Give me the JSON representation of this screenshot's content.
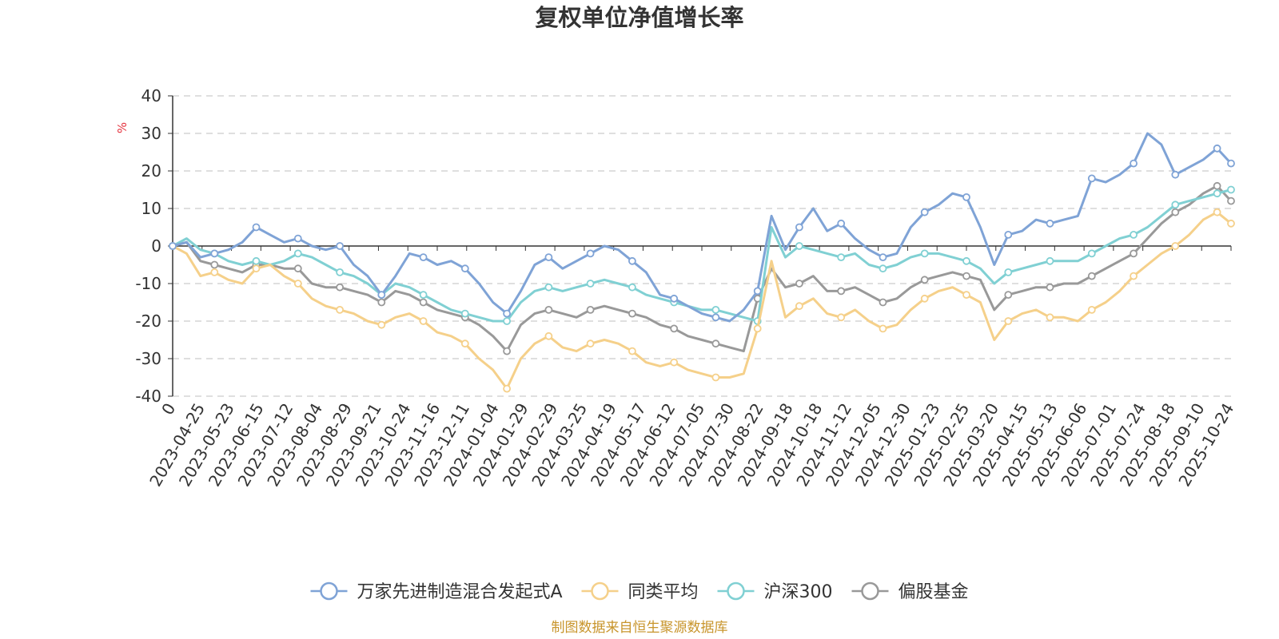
{
  "chart_data": {
    "type": "line",
    "title": "复权单位净值增长率",
    "unit_label": "%",
    "ylim": [
      -40,
      40
    ],
    "y_ticks": [
      "40",
      "30",
      "20",
      "10",
      "0",
      "-10",
      "-20",
      "-30",
      "-40"
    ],
    "x_ticks": [
      "0",
      "2023-04-25",
      "2023-05-23",
      "2023-06-15",
      "2023-07-12",
      "2023-08-04",
      "2023-08-29",
      "2023-09-21",
      "2023-10-24",
      "2023-11-16",
      "2023-12-11",
      "2024-01-04",
      "2024-01-29",
      "2024-02-29",
      "2024-03-25",
      "2024-04-19",
      "2024-05-17",
      "2024-06-12",
      "2024-07-05",
      "2024-07-30",
      "2024-08-22",
      "2024-09-18",
      "2024-10-18",
      "2024-11-12",
      "2024-12-05",
      "2024-12-30",
      "2025-01-23",
      "2025-02-25",
      "2025-03-20",
      "2025-04-15",
      "2025-05-13",
      "2025-06-06",
      "2025-07-01",
      "2025-07-24",
      "2025-08-18",
      "2025-09-10",
      "2025-10-24"
    ],
    "grid": true,
    "legend_position": "bottom",
    "series": [
      {
        "name": "万家先进制造混合发起式A",
        "color": "#7fa3d6",
        "values": [
          0,
          1,
          -3,
          -2,
          -1,
          1,
          5,
          3,
          1,
          2,
          0,
          -1,
          0,
          -5,
          -8,
          -13,
          -8,
          -2,
          -3,
          -5,
          -4,
          -6,
          -10,
          -15,
          -18,
          -12,
          -5,
          -3,
          -6,
          -4,
          -2,
          0,
          -1,
          -4,
          -7,
          -13,
          -14,
          -16,
          -18,
          -19,
          -20,
          -17,
          -12,
          8,
          -1,
          5,
          10,
          4,
          6,
          2,
          -1,
          -3,
          -2,
          5,
          9,
          11,
          14,
          13,
          5,
          -5,
          3,
          4,
          7,
          6,
          7,
          8,
          18,
          17,
          19,
          22,
          30,
          27,
          19,
          21,
          23,
          26,
          22
        ]
      },
      {
        "name": "同类平均",
        "color": "#f5d08a",
        "values": [
          0,
          -2,
          -8,
          -7,
          -9,
          -10,
          -6,
          -5,
          -8,
          -10,
          -14,
          -16,
          -17,
          -18,
          -20,
          -21,
          -19,
          -18,
          -20,
          -23,
          -24,
          -26,
          -30,
          -33,
          -38,
          -30,
          -26,
          -24,
          -27,
          -28,
          -26,
          -25,
          -26,
          -28,
          -31,
          -32,
          -31,
          -33,
          -34,
          -35,
          -35,
          -34,
          -22,
          -4,
          -19,
          -16,
          -14,
          -18,
          -19,
          -17,
          -20,
          -22,
          -21,
          -17,
          -14,
          -12,
          -11,
          -13,
          -15,
          -25,
          -20,
          -18,
          -17,
          -19,
          -19,
          -20,
          -17,
          -15,
          -12,
          -8,
          -5,
          -2,
          0,
          3,
          7,
          9,
          6
        ]
      },
      {
        "name": "沪深300",
        "color": "#80d0d3",
        "values": [
          0,
          2,
          -1,
          -2,
          -4,
          -5,
          -4,
          -5,
          -4,
          -2,
          -3,
          -5,
          -7,
          -8,
          -10,
          -13,
          -10,
          -11,
          -13,
          -15,
          -17,
          -18,
          -19,
          -20,
          -20,
          -15,
          -12,
          -11,
          -12,
          -11,
          -10,
          -9,
          -10,
          -11,
          -13,
          -14,
          -15,
          -16,
          -17,
          -17,
          -18,
          -19,
          -20,
          5,
          -3,
          0,
          -1,
          -2,
          -3,
          -2,
          -5,
          -6,
          -5,
          -3,
          -2,
          -2,
          -3,
          -4,
          -6,
          -10,
          -7,
          -6,
          -5,
          -4,
          -4,
          -4,
          -2,
          0,
          2,
          3,
          5,
          8,
          11,
          12,
          13,
          14,
          15
        ]
      },
      {
        "name": "偏股基金",
        "color": "#999999",
        "values": [
          0,
          1,
          -4,
          -5,
          -6,
          -7,
          -5,
          -5,
          -6,
          -6,
          -10,
          -11,
          -11,
          -12,
          -13,
          -15,
          -12,
          -13,
          -15,
          -17,
          -18,
          -19,
          -21,
          -24,
          -28,
          -21,
          -18,
          -17,
          -18,
          -19,
          -17,
          -16,
          -17,
          -18,
          -19,
          -21,
          -22,
          -24,
          -25,
          -26,
          -27,
          -28,
          -14,
          -6,
          -11,
          -10,
          -8,
          -12,
          -12,
          -11,
          -13,
          -15,
          -14,
          -11,
          -9,
          -8,
          -7,
          -8,
          -9,
          -17,
          -13,
          -12,
          -11,
          -11,
          -10,
          -10,
          -8,
          -6,
          -4,
          -2,
          2,
          6,
          9,
          11,
          14,
          16,
          12
        ]
      }
    ]
  },
  "footer": "制图数据来自恒生聚源数据库"
}
